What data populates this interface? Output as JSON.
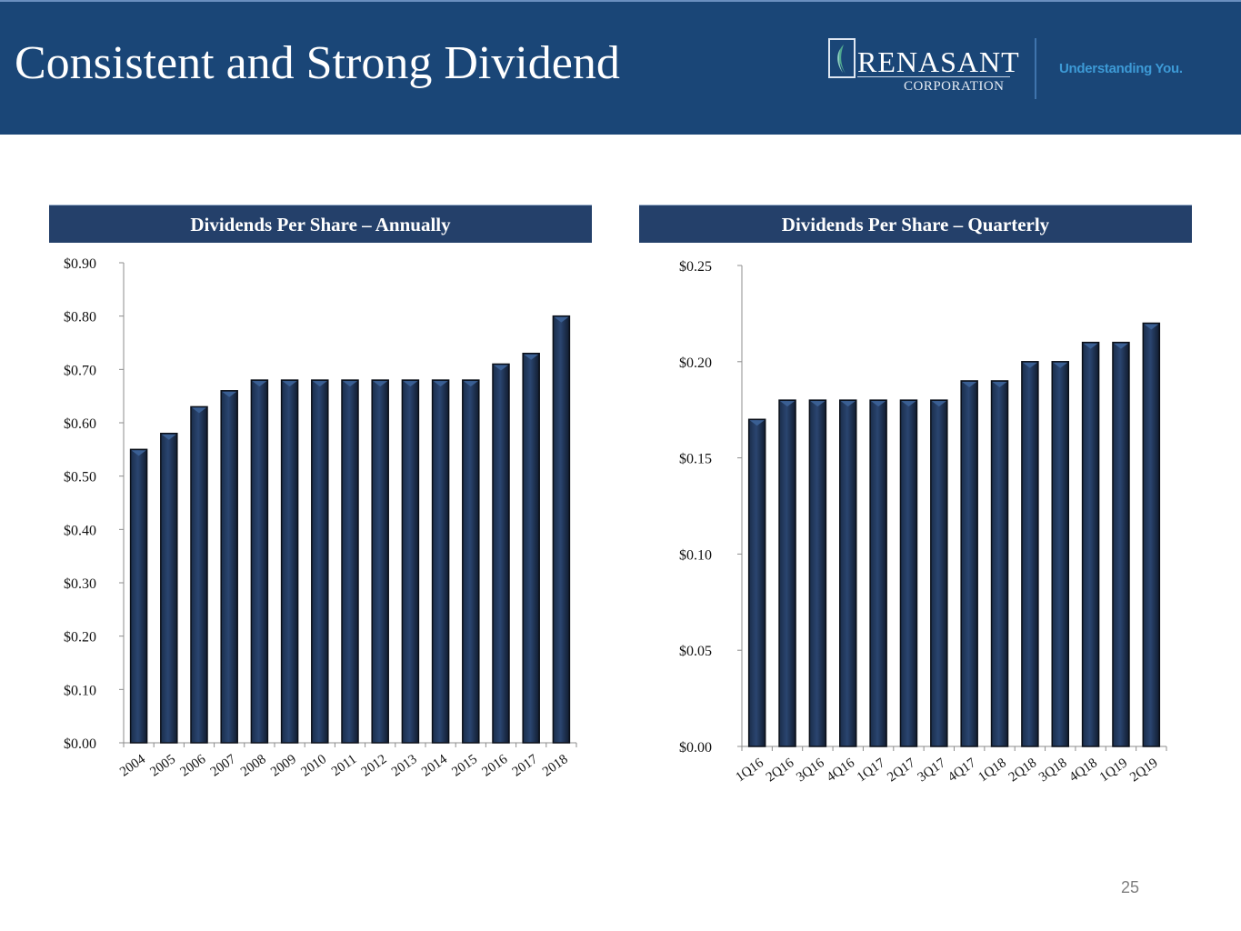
{
  "slide": {
    "title": "Consistent and Strong Dividend",
    "page_number": "25"
  },
  "logo": {
    "name": "RENASANT",
    "subtitle": "CORPORATION",
    "tagline": "Understanding You.",
    "icon": "leaf-logo-icon"
  },
  "colors": {
    "header_bg": "#1a4677",
    "panel_header_bg": "#24406a",
    "bar_fill": "#1b2e4b",
    "tagline": "#3d9ad6"
  },
  "panels": {
    "annual": {
      "header": "Dividends Per Share – Annually"
    },
    "quarterly": {
      "header": "Dividends Per Share – Quarterly"
    }
  },
  "chart_data": [
    {
      "type": "bar",
      "title": "Dividends Per Share – Annually",
      "xlabel": "",
      "ylabel": "",
      "categories": [
        "2004",
        "2005",
        "2006",
        "2007",
        "2008",
        "2009",
        "2010",
        "2011",
        "2012",
        "2013",
        "2014",
        "2015",
        "2016",
        "2017",
        "2018"
      ],
      "values": [
        0.55,
        0.58,
        0.63,
        0.66,
        0.68,
        0.68,
        0.68,
        0.68,
        0.68,
        0.68,
        0.68,
        0.68,
        0.71,
        0.73,
        0.8
      ],
      "ylim": [
        0,
        0.9
      ],
      "yticks": [
        0.0,
        0.1,
        0.2,
        0.3,
        0.4,
        0.5,
        0.6,
        0.7,
        0.8,
        0.9
      ],
      "ytick_labels": [
        "$0.00",
        "$0.10",
        "$0.20",
        "$0.30",
        "$0.40",
        "$0.50",
        "$0.60",
        "$0.70",
        "$0.80",
        "$0.90"
      ],
      "grid": false,
      "legend": "none"
    },
    {
      "type": "bar",
      "title": "Dividends Per Share – Quarterly",
      "xlabel": "",
      "ylabel": "",
      "categories": [
        "1Q16",
        "2Q16",
        "3Q16",
        "4Q16",
        "1Q17",
        "2Q17",
        "3Q17",
        "4Q17",
        "1Q18",
        "2Q18",
        "3Q18",
        "4Q18",
        "1Q19",
        "2Q19"
      ],
      "values": [
        0.17,
        0.18,
        0.18,
        0.18,
        0.18,
        0.18,
        0.18,
        0.19,
        0.19,
        0.2,
        0.2,
        0.21,
        0.21,
        0.22
      ],
      "ylim": [
        0,
        0.25
      ],
      "yticks": [
        0.0,
        0.05,
        0.1,
        0.15,
        0.2,
        0.25
      ],
      "ytick_labels": [
        "$0.00",
        "$0.05",
        "$0.10",
        "$0.15",
        "$0.20",
        "$0.25"
      ],
      "grid": false,
      "legend": "none"
    }
  ]
}
